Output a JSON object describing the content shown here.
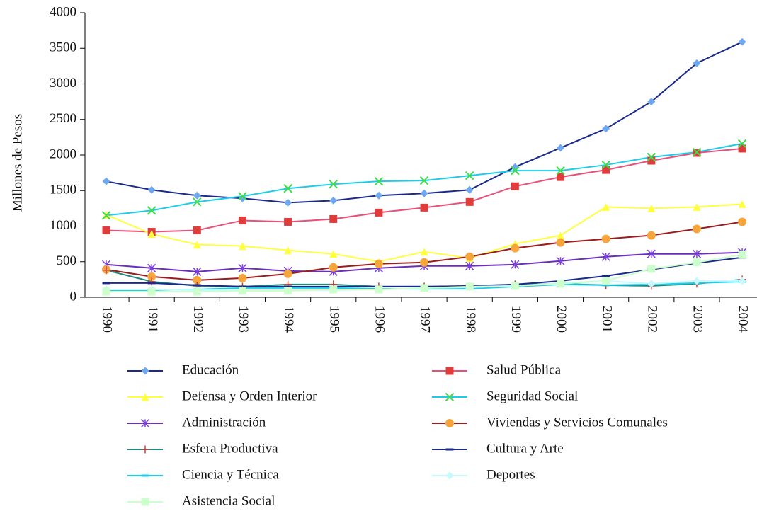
{
  "chart_data": {
    "type": "line",
    "y_label": "Millones de Pesos",
    "categories": [
      "1990",
      "1991",
      "1992",
      "1993",
      "1994",
      "1995",
      "1996",
      "1997",
      "1998",
      "1999",
      "2000",
      "2001",
      "2002",
      "2003",
      "2004"
    ],
    "ylim": [
      0,
      4000
    ],
    "yticks": [
      0,
      500,
      1000,
      1500,
      2000,
      2500,
      3000,
      3500,
      4000
    ],
    "series": [
      {
        "name": "Educación",
        "color": "#1a2a8c",
        "marker_color": "#6fa8f0",
        "marker": "diamond",
        "values": [
          1630,
          1510,
          1430,
          1390,
          1330,
          1360,
          1430,
          1460,
          1510,
          1830,
          2100,
          2370,
          2750,
          3290,
          3590
        ]
      },
      {
        "name": "Salud Pública",
        "color": "#e8507a",
        "marker_color": "#e03c3c",
        "marker": "square",
        "values": [
          940,
          920,
          940,
          1080,
          1060,
          1100,
          1190,
          1260,
          1340,
          1560,
          1690,
          1790,
          1920,
          2030,
          2090
        ]
      },
      {
        "name": "Defensa y Orden Interior",
        "color": "#ffff40",
        "marker_color": "#ffff40",
        "marker": "triangle",
        "values": [
          1160,
          890,
          740,
          720,
          660,
          610,
          500,
          640,
          550,
          750,
          870,
          1270,
          1250,
          1270,
          1310
        ]
      },
      {
        "name": "Seguridad Social",
        "color": "#1ccde8",
        "marker_color": "#3ddc4a",
        "marker": "x",
        "values": [
          1150,
          1220,
          1340,
          1420,
          1530,
          1590,
          1630,
          1640,
          1710,
          1780,
          1780,
          1860,
          1970,
          2040,
          2160
        ]
      },
      {
        "name": "Administración",
        "color": "#6a2fb8",
        "marker_color": "#7b3fe4",
        "marker": "asterisk",
        "values": [
          460,
          410,
          360,
          410,
          370,
          360,
          410,
          440,
          440,
          460,
          510,
          570,
          610,
          610,
          630
        ]
      },
      {
        "name": "Viviendas y Servicios Comunales",
        "color": "#9a1c1c",
        "marker_color": "#f5a53c",
        "marker": "circle",
        "values": [
          390,
          290,
          240,
          270,
          330,
          420,
          470,
          490,
          570,
          690,
          770,
          820,
          870,
          960,
          1060
        ]
      },
      {
        "name": "Esfera Productiva",
        "color": "#1f8a7a",
        "marker_color": "#c04040",
        "marker": "plus",
        "values": [
          380,
          220,
          160,
          150,
          180,
          180,
          150,
          150,
          150,
          180,
          190,
          170,
          160,
          190,
          250
        ]
      },
      {
        "name": "Cultura y Arte",
        "color": "#1a2a8c",
        "marker_color": "#1a2a8c",
        "marker": "dash",
        "values": [
          200,
          200,
          170,
          150,
          150,
          150,
          150,
          150,
          160,
          180,
          230,
          300,
          390,
          480,
          560
        ]
      },
      {
        "name": "Ciencia y Técnica",
        "color": "#1ccde8",
        "marker_color": "#1ccde8",
        "marker": "dash",
        "values": [
          100,
          100,
          110,
          130,
          130,
          130,
          120,
          120,
          120,
          150,
          180,
          170,
          180,
          200,
          220
        ]
      },
      {
        "name": "Deportes",
        "color": "#c8f8ff",
        "marker_color": "#c8f8ff",
        "marker": "diamond",
        "values": [
          110,
          110,
          100,
          100,
          100,
          100,
          110,
          130,
          140,
          160,
          200,
          230,
          190,
          230,
          230
        ]
      },
      {
        "name": "Asistencia Social",
        "color": "#ccffcc",
        "marker_color": "#ccffcc",
        "marker": "square",
        "values": [
          80,
          80,
          80,
          90,
          90,
          110,
          110,
          130,
          150,
          160,
          190,
          230,
          400,
          490,
          600
        ]
      }
    ]
  }
}
